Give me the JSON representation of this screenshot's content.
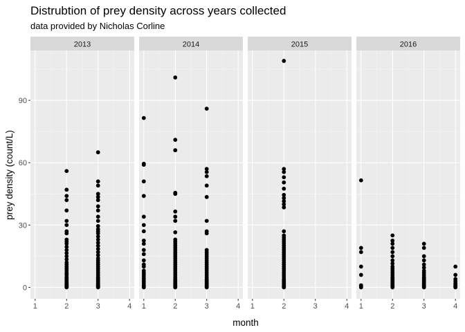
{
  "chart_data": {
    "type": "scatter",
    "title": "Distrubtion of prey density across years collected",
    "subtitle": "data provided by Nicholas Corline",
    "xlabel": "month",
    "ylabel": "prey density (count/L)",
    "xlim": [
      0.85,
      4.15
    ],
    "ylim": [
      -5.5,
      114
    ],
    "x_ticks": [
      1,
      2,
      3,
      4
    ],
    "y_ticks": [
      0,
      30,
      60,
      90
    ],
    "grid": true,
    "facet_by": "year",
    "point_color": "#000000",
    "panel_background": "#ebebeb",
    "strip_background": "#d9d9d9",
    "panels": [
      {
        "label": "2013",
        "points": [
          {
            "x": 2,
            "values": [
              0,
              0.2,
              0.4,
              0.6,
              0.8,
              1,
              1.3,
              1.6,
              2,
              2.5,
              3,
              3.5,
              4,
              4.5,
              5,
              6,
              6.5,
              7,
              8,
              9,
              10,
              11,
              12,
              13.5,
              15,
              16.5,
              18,
              19.5,
              21,
              22,
              23,
              26,
              27,
              30,
              32,
              37,
              42,
              44,
              47,
              56
            ]
          },
          {
            "x": 3,
            "values": [
              0,
              0.2,
              0.4,
              0.6,
              0.8,
              1,
              1.3,
              1.6,
              2,
              2.5,
              3,
              3.5,
              4,
              4.5,
              5,
              6,
              7,
              8,
              9,
              10,
              11,
              12,
              13,
              14,
              15.5,
              17,
              18.5,
              20,
              21.5,
              23,
              24.5,
              26,
              27,
              28,
              29.5,
              32,
              34,
              37,
              39,
              42,
              43.5,
              45,
              49,
              51,
              65
            ]
          }
        ]
      },
      {
        "label": "2014",
        "points": [
          {
            "x": 1,
            "values": [
              0,
              0.5,
              1,
              2,
              3,
              4,
              5,
              6,
              7,
              8,
              10,
              11,
              13,
              16,
              18,
              21,
              22.5,
              27,
              30,
              34,
              44,
              51,
              59,
              59.5,
              81.5
            ]
          },
          {
            "x": 2,
            "values": [
              0,
              0.3,
              0.6,
              1,
              1.5,
              2,
              2.5,
              3,
              3.5,
              4,
              5,
              6,
              7,
              8,
              9,
              10,
              11,
              12,
              13,
              14,
              15,
              16,
              17,
              18,
              19,
              20,
              21,
              22,
              23,
              26.5,
              32,
              34,
              36.5,
              45,
              45.5,
              66,
              71,
              101
            ]
          },
          {
            "x": 3,
            "values": [
              0,
              0.3,
              0.6,
              1,
              1.5,
              2,
              2.5,
              3,
              3.5,
              4,
              5,
              6,
              7,
              8,
              9,
              10,
              11,
              12,
              13,
              14,
              15,
              16,
              17,
              18,
              26,
              27,
              32,
              43.5,
              49,
              53.5,
              55.5,
              57,
              86
            ]
          }
        ]
      },
      {
        "label": "2015",
        "points": [
          {
            "x": 2,
            "values": [
              0,
              0.3,
              0.6,
              1,
              1.5,
              2,
              2.5,
              3,
              3.5,
              4,
              5,
              6,
              7,
              8,
              9,
              10,
              11,
              12,
              13,
              14,
              15,
              16,
              17,
              18,
              19,
              20,
              21,
              22,
              23,
              24,
              25,
              27,
              38.5,
              40,
              41.5,
              43,
              44.5,
              47.5,
              50.5,
              53,
              55.5,
              57,
              109
            ]
          }
        ]
      },
      {
        "label": "2016",
        "points": [
          {
            "x": 1,
            "values": [
              0,
              0.5,
              1,
              6,
              10,
              17,
              19,
              51.5
            ]
          },
          {
            "x": 2,
            "values": [
              0,
              0.3,
              0.6,
              1,
              1.5,
              2,
              2.5,
              3,
              3.5,
              4,
              4.5,
              5,
              6,
              7,
              8,
              9,
              10,
              11.5,
              13,
              15,
              17,
              19,
              21,
              22.5,
              25
            ]
          },
          {
            "x": 3,
            "values": [
              0,
              0.3,
              0.6,
              1,
              1.5,
              2,
              2.5,
              3,
              3.5,
              4,
              4.5,
              5,
              6,
              7,
              8,
              9.5,
              11,
              13,
              15,
              19,
              21
            ]
          },
          {
            "x": 4,
            "values": [
              0,
              0.3,
              0.6,
              1,
              1.5,
              2,
              3,
              4,
              6,
              10
            ]
          }
        ]
      }
    ]
  }
}
